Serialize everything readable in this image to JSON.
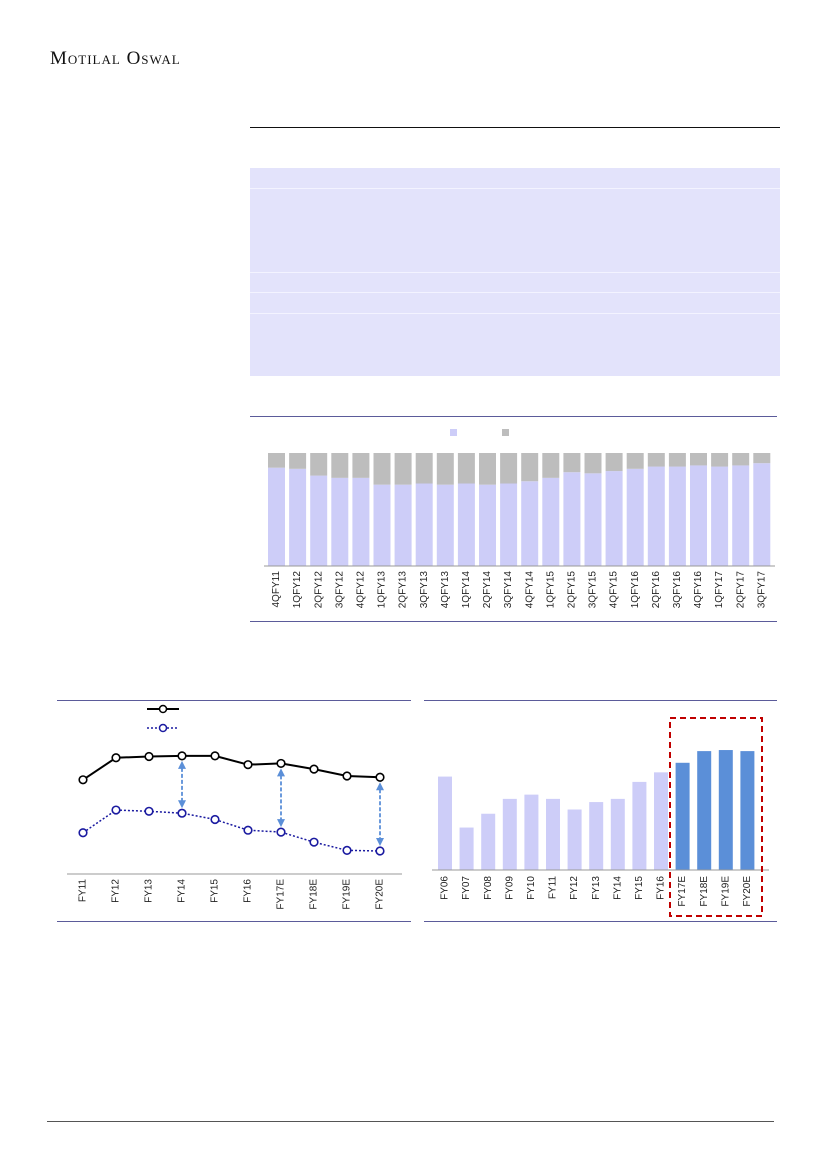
{
  "header": {
    "brand": "Motilal Oswal"
  },
  "colors": {
    "light_bar": "#cdcdf8",
    "gray_bar": "#bdbdbd",
    "blue_bar": "#5b8fd8",
    "rule": "#5b5b9a",
    "dashed_box": "#c00000",
    "arrow": "#5b8fd8"
  },
  "chart_data": [
    {
      "type": "bar",
      "stacked": true,
      "categories": [
        "4QFY11",
        "1QFY12",
        "2QFY12",
        "3QFY12",
        "4QFY12",
        "1QFY13",
        "2QFY13",
        "3QFY13",
        "4QFY13",
        "1QFY14",
        "2QFY14",
        "3QFY14",
        "4QFY14",
        "1QFY15",
        "2QFY15",
        "3QFY15",
        "4QFY15",
        "1QFY16",
        "2QFY16",
        "3QFY16",
        "4QFY16",
        "1QFY17",
        "2QFY17",
        "3QFY17"
      ],
      "series": [
        {
          "values": [
            87,
            86,
            80,
            78,
            78,
            72,
            72,
            73,
            72,
            73,
            72,
            73,
            75,
            78,
            83,
            82,
            84,
            86,
            88,
            88,
            89,
            88,
            89,
            91
          ]
        },
        {
          "values": [
            13,
            14,
            20,
            22,
            22,
            28,
            28,
            27,
            28,
            27,
            28,
            27,
            25,
            22,
            17,
            18,
            16,
            14,
            12,
            12,
            11,
            12,
            11,
            9
          ]
        }
      ],
      "ylim": [
        0,
        100
      ],
      "legend": "top-center"
    },
    {
      "type": "line",
      "categories": [
        "FY11",
        "FY12",
        "FY13",
        "FY14",
        "FY15",
        "FY16",
        "FY17E",
        "FY18E",
        "FY19E",
        "FY20E"
      ],
      "series": [
        {
          "values": [
            18.0,
            21.5,
            21.7,
            21.8,
            21.8,
            20.4,
            20.6,
            19.7,
            18.6,
            18.4
          ],
          "marker": "circle",
          "style": "solid"
        },
        {
          "values": [
            9.6,
            13.2,
            13.0,
            12.7,
            11.7,
            10.0,
            9.7,
            8.1,
            6.8,
            6.7
          ],
          "marker": "circle",
          "style": "dotted"
        }
      ],
      "ylim": [
        4,
        24
      ],
      "arrows_at": [
        "FY14",
        "FY17E",
        "FY20E"
      ]
    },
    {
      "type": "bar",
      "categories": [
        "FY06",
        "FY07",
        "FY08",
        "FY09",
        "FY10",
        "FY11",
        "FY12",
        "FY13",
        "FY14",
        "FY15",
        "FY16",
        "FY17E",
        "FY18E",
        "FY19E",
        "FY20E"
      ],
      "values": [
        88,
        40,
        53,
        67,
        71,
        67,
        57,
        64,
        67,
        83,
        92,
        101,
        112,
        113,
        112
      ],
      "highlighted": [
        "FY17E",
        "FY18E",
        "FY19E",
        "FY20E"
      ],
      "ylim": [
        0,
        130
      ]
    }
  ]
}
